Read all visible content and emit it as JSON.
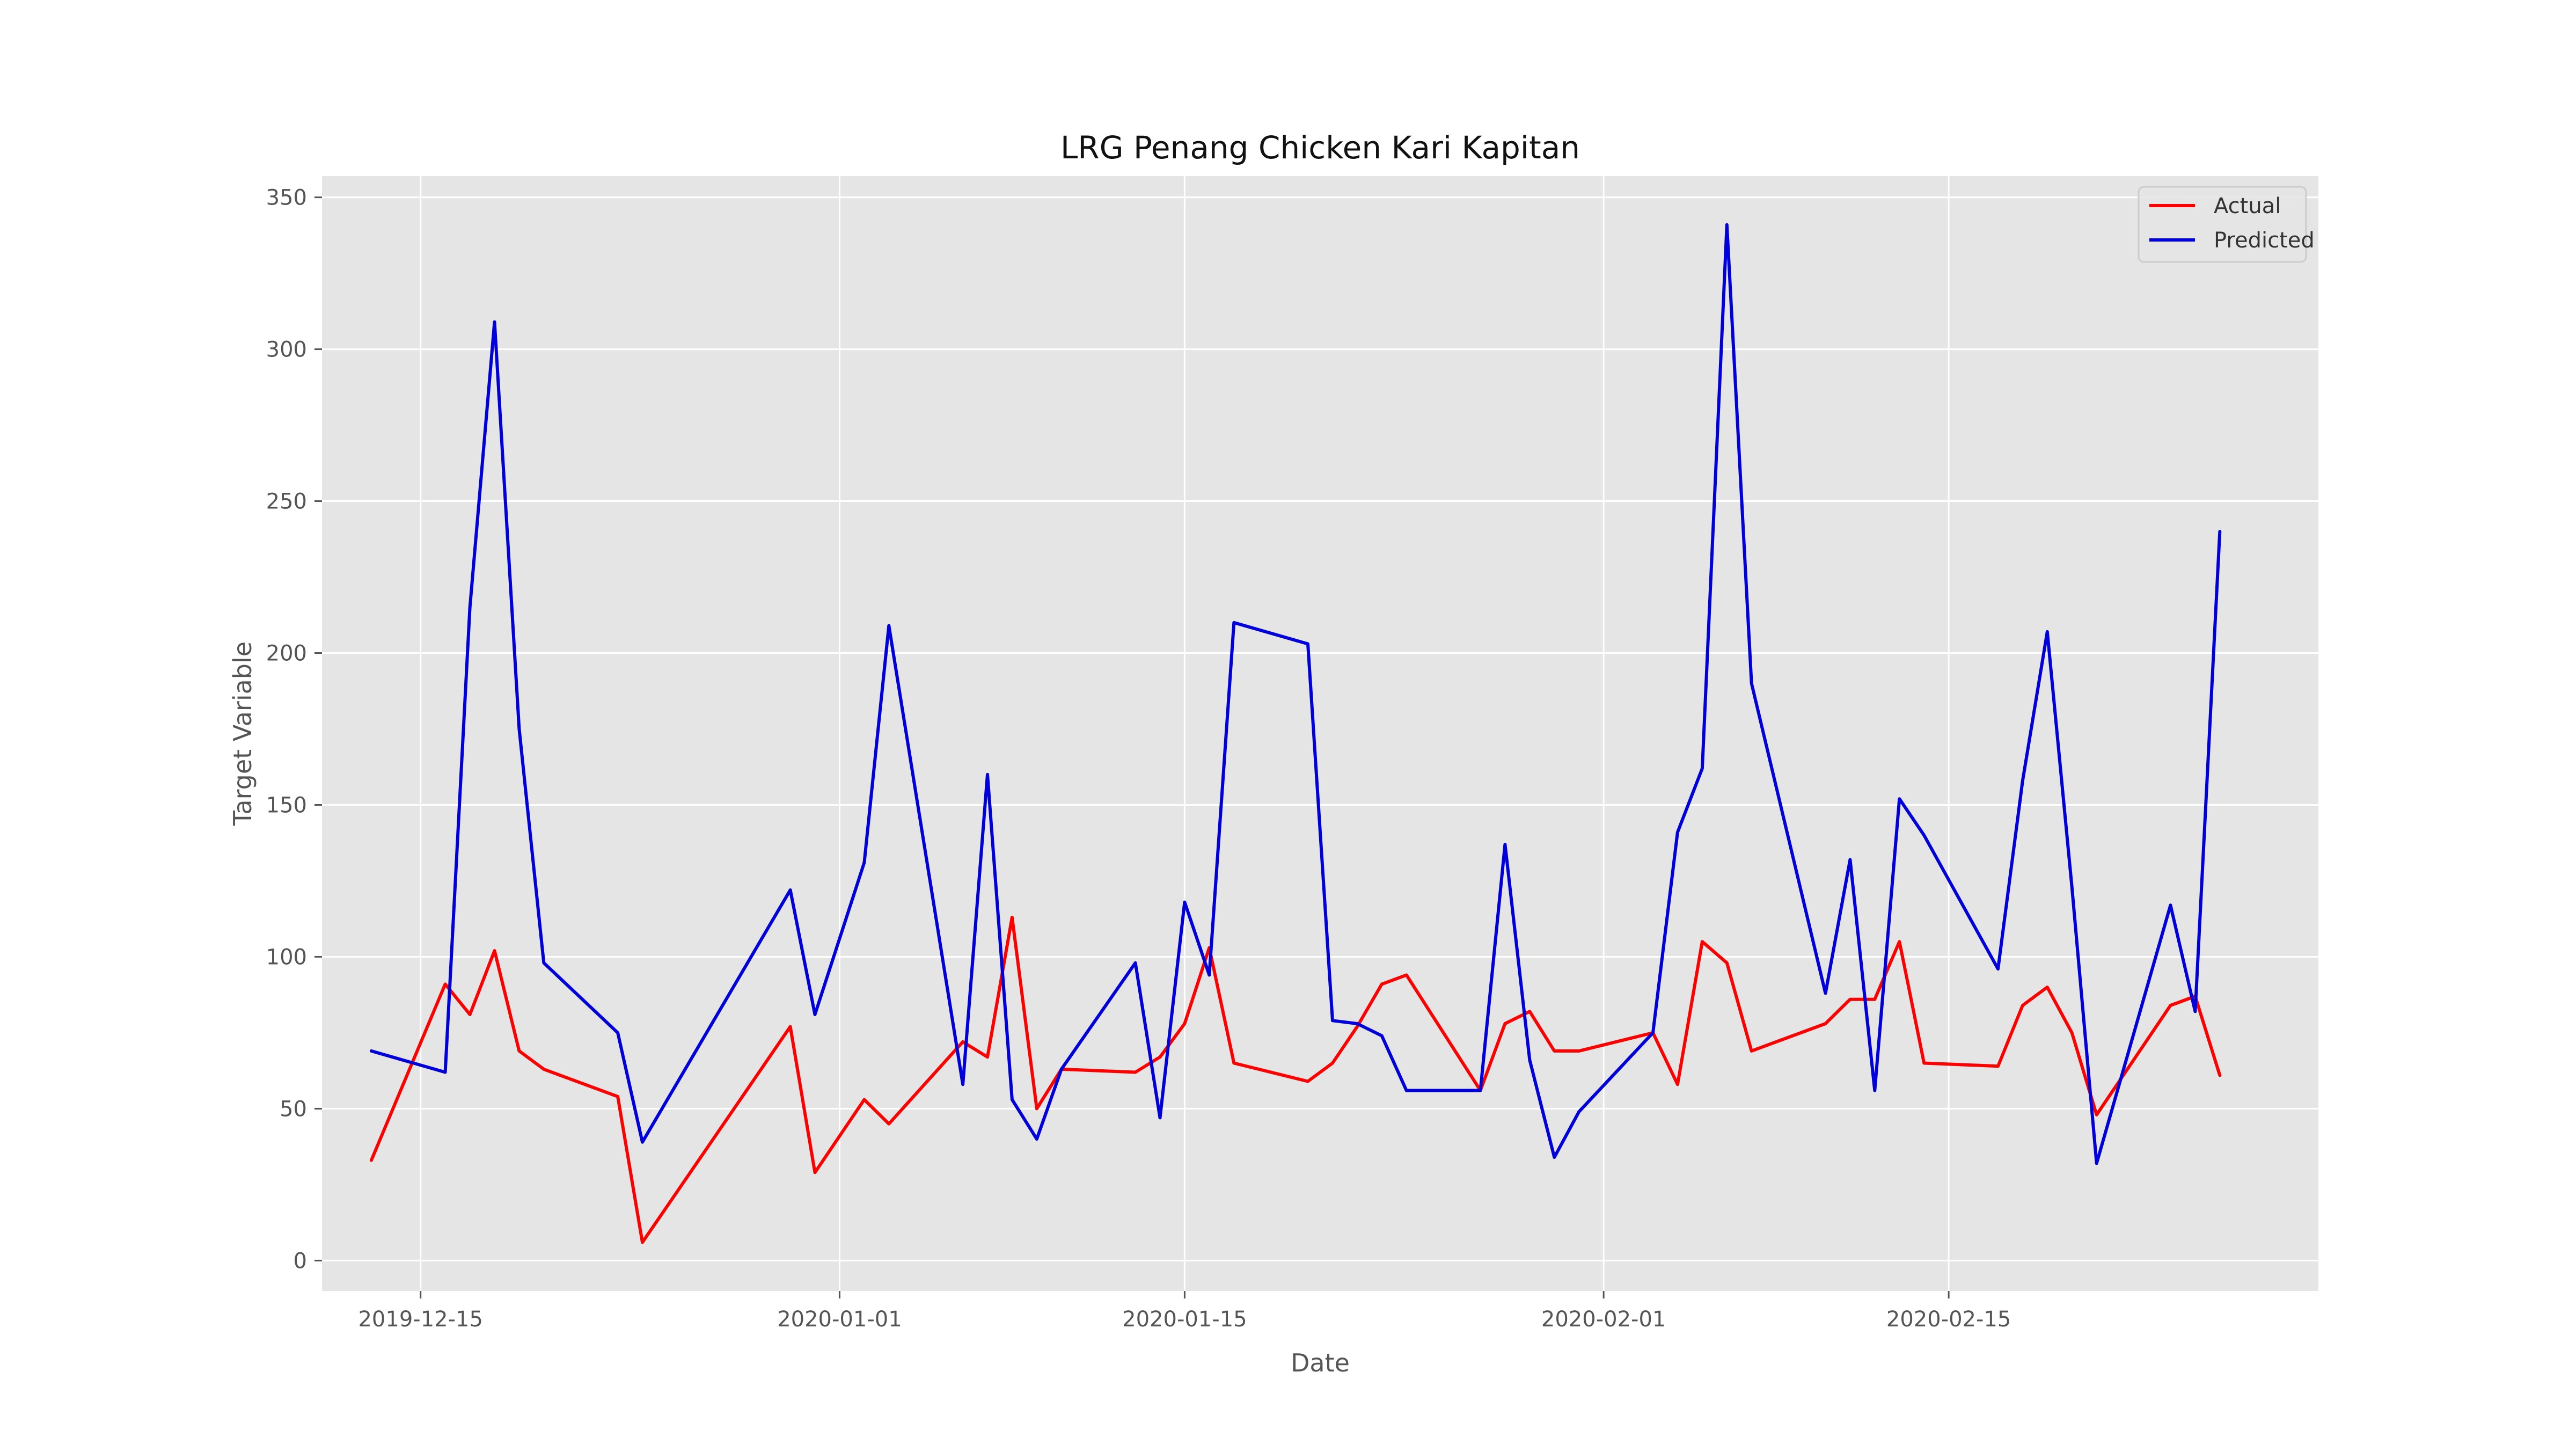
{
  "chart_data": {
    "type": "line",
    "title": "LRG Penang Chicken Kari Kapitan",
    "xlabel": "Date",
    "ylabel": "Target Variable",
    "x_axis": {
      "type": "date",
      "range": [
        "2019-12-11",
        "2020-03-01"
      ],
      "ticks": [
        "2019-12-15",
        "2020-01-01",
        "2020-01-15",
        "2020-02-01",
        "2020-02-15"
      ]
    },
    "y_axis": {
      "range": [
        -10,
        357
      ],
      "ticks": [
        0,
        50,
        100,
        150,
        200,
        250,
        300,
        350
      ]
    },
    "grid": true,
    "legend_position": "top-right",
    "colors": {
      "background": "#e5e5e5",
      "grid": "#ffffff"
    },
    "series": [
      {
        "name": "Actual",
        "color": "#ff0000",
        "points": [
          [
            "2019-12-13",
            33
          ],
          [
            "2019-12-16",
            91
          ],
          [
            "2019-12-17",
            81
          ],
          [
            "2019-12-18",
            102
          ],
          [
            "2019-12-19",
            69
          ],
          [
            "2019-12-20",
            63
          ],
          [
            "2019-12-23",
            54
          ],
          [
            "2019-12-24",
            6
          ],
          [
            "2019-12-30",
            77
          ],
          [
            "2019-12-31",
            29
          ],
          [
            "2020-01-02",
            53
          ],
          [
            "2020-01-03",
            45
          ],
          [
            "2020-01-06",
            72
          ],
          [
            "2020-01-07",
            67
          ],
          [
            "2020-01-08",
            113
          ],
          [
            "2020-01-09",
            50
          ],
          [
            "2020-01-10",
            63
          ],
          [
            "2020-01-13",
            62
          ],
          [
            "2020-01-14",
            67
          ],
          [
            "2020-01-15",
            78
          ],
          [
            "2020-01-16",
            103
          ],
          [
            "2020-01-17",
            65
          ],
          [
            "2020-01-20",
            59
          ],
          [
            "2020-01-21",
            65
          ],
          [
            "2020-01-22",
            77
          ],
          [
            "2020-01-23",
            91
          ],
          [
            "2020-01-24",
            94
          ],
          [
            "2020-01-27",
            56
          ],
          [
            "2020-01-28",
            78
          ],
          [
            "2020-01-29",
            82
          ],
          [
            "2020-01-30",
            69
          ],
          [
            "2020-01-31",
            69
          ],
          [
            "2020-02-03",
            75
          ],
          [
            "2020-02-04",
            58
          ],
          [
            "2020-02-05",
            105
          ],
          [
            "2020-02-06",
            98
          ],
          [
            "2020-02-07",
            69
          ],
          [
            "2020-02-10",
            78
          ],
          [
            "2020-02-11",
            86
          ],
          [
            "2020-02-12",
            86
          ],
          [
            "2020-02-13",
            105
          ],
          [
            "2020-02-14",
            65
          ],
          [
            "2020-02-17",
            64
          ],
          [
            "2020-02-18",
            84
          ],
          [
            "2020-02-19",
            90
          ],
          [
            "2020-02-20",
            75
          ],
          [
            "2020-02-21",
            48
          ],
          [
            "2020-02-24",
            84
          ],
          [
            "2020-02-25",
            87
          ],
          [
            "2020-02-26",
            61
          ]
        ]
      },
      {
        "name": "Predicted",
        "color": "#0000dd",
        "points": [
          [
            "2019-12-13",
            69
          ],
          [
            "2019-12-16",
            62
          ],
          [
            "2019-12-17",
            215
          ],
          [
            "2019-12-18",
            309
          ],
          [
            "2019-12-19",
            175
          ],
          [
            "2019-12-20",
            98
          ],
          [
            "2019-12-23",
            75
          ],
          [
            "2019-12-24",
            39
          ],
          [
            "2019-12-30",
            122
          ],
          [
            "2019-12-31",
            81
          ],
          [
            "2020-01-02",
            131
          ],
          [
            "2020-01-03",
            209
          ],
          [
            "2020-01-06",
            58
          ],
          [
            "2020-01-07",
            160
          ],
          [
            "2020-01-08",
            53
          ],
          [
            "2020-01-09",
            40
          ],
          [
            "2020-01-10",
            63
          ],
          [
            "2020-01-13",
            98
          ],
          [
            "2020-01-14",
            47
          ],
          [
            "2020-01-15",
            118
          ],
          [
            "2020-01-16",
            94
          ],
          [
            "2020-01-17",
            210
          ],
          [
            "2020-01-20",
            203
          ],
          [
            "2020-01-21",
            79
          ],
          [
            "2020-01-22",
            78
          ],
          [
            "2020-01-23",
            74
          ],
          [
            "2020-01-24",
            56
          ],
          [
            "2020-01-27",
            56
          ],
          [
            "2020-01-28",
            137
          ],
          [
            "2020-01-29",
            66
          ],
          [
            "2020-01-30",
            34
          ],
          [
            "2020-01-31",
            49
          ],
          [
            "2020-02-03",
            75
          ],
          [
            "2020-02-04",
            141
          ],
          [
            "2020-02-05",
            162
          ],
          [
            "2020-02-06",
            341
          ],
          [
            "2020-02-07",
            190
          ],
          [
            "2020-02-10",
            88
          ],
          [
            "2020-02-11",
            132
          ],
          [
            "2020-02-12",
            56
          ],
          [
            "2020-02-13",
            152
          ],
          [
            "2020-02-14",
            140
          ],
          [
            "2020-02-17",
            96
          ],
          [
            "2020-02-18",
            158
          ],
          [
            "2020-02-19",
            207
          ],
          [
            "2020-02-20",
            123
          ],
          [
            "2020-02-21",
            32
          ],
          [
            "2020-02-24",
            117
          ],
          [
            "2020-02-25",
            82
          ],
          [
            "2020-02-26",
            240
          ]
        ]
      }
    ]
  }
}
